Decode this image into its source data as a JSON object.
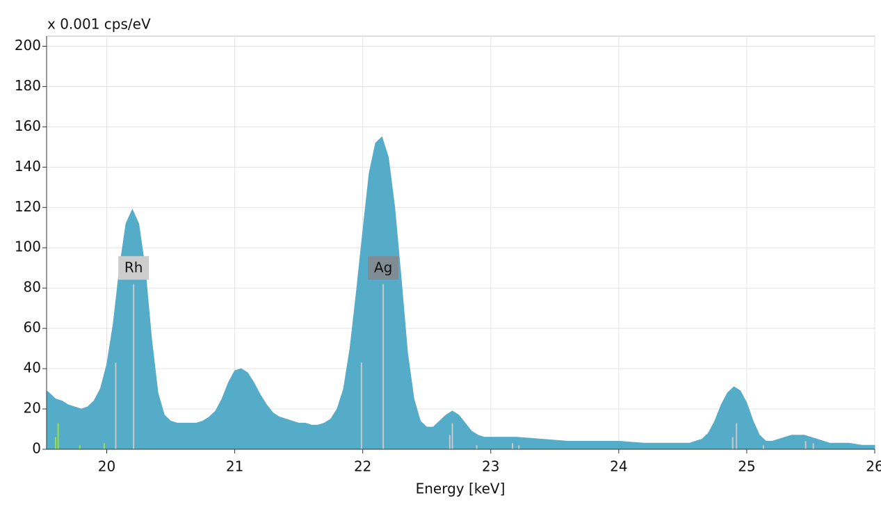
{
  "chart_data": {
    "type": "area",
    "y_unit_label": "x 0.001 cps/eV",
    "xlabel": "Energy [keV]",
    "color": "#55acc9",
    "xlim": [
      19.53,
      26.0
    ],
    "ylim": [
      0,
      205
    ],
    "xticks": [
      20,
      21,
      22,
      23,
      24,
      25,
      26
    ],
    "yticks": [
      0,
      20,
      40,
      60,
      80,
      100,
      120,
      140,
      160,
      180,
      200
    ],
    "grid": true,
    "x": [
      19.53,
      19.55,
      19.6,
      19.65,
      19.7,
      19.75,
      19.8,
      19.85,
      19.9,
      19.95,
      20.0,
      20.05,
      20.1,
      20.15,
      20.2,
      20.25,
      20.3,
      20.35,
      20.4,
      20.45,
      20.5,
      20.55,
      20.6,
      20.65,
      20.7,
      20.75,
      20.8,
      20.85,
      20.9,
      20.95,
      21.0,
      21.05,
      21.1,
      21.15,
      21.2,
      21.25,
      21.3,
      21.35,
      21.4,
      21.45,
      21.5,
      21.55,
      21.6,
      21.65,
      21.7,
      21.75,
      21.8,
      21.85,
      21.9,
      21.95,
      22.0,
      22.05,
      22.1,
      22.15,
      22.2,
      22.25,
      22.3,
      22.35,
      22.4,
      22.45,
      22.5,
      22.55,
      22.6,
      22.65,
      22.7,
      22.75,
      22.8,
      22.85,
      22.9,
      22.95,
      23.0,
      23.2,
      23.4,
      23.6,
      23.8,
      24.0,
      24.2,
      24.4,
      24.55,
      24.6,
      24.65,
      24.7,
      24.75,
      24.8,
      24.85,
      24.9,
      24.95,
      25.0,
      25.05,
      25.1,
      25.15,
      25.2,
      25.25,
      25.3,
      25.35,
      25.4,
      25.45,
      25.5,
      25.55,
      25.6,
      25.65,
      25.7,
      25.8,
      25.9,
      26.0
    ],
    "values": [
      29,
      28,
      25,
      24,
      22,
      21,
      20,
      21,
      24,
      30,
      42,
      62,
      90,
      112,
      119,
      112,
      90,
      55,
      28,
      17,
      14,
      13,
      13,
      13,
      13,
      14,
      16,
      19,
      25,
      33,
      39,
      40,
      38,
      33,
      27,
      22,
      18,
      16,
      15,
      14,
      13,
      13,
      12,
      12,
      13,
      15,
      20,
      30,
      50,
      78,
      108,
      137,
      152,
      155,
      145,
      120,
      85,
      48,
      25,
      14,
      11,
      11,
      14,
      17,
      19,
      17,
      13,
      9,
      7,
      6,
      6,
      6,
      5,
      4,
      4,
      4,
      3,
      3,
      3,
      4,
      5,
      8,
      14,
      22,
      28,
      31,
      29,
      23,
      14,
      7,
      4,
      4,
      5,
      6,
      7,
      7,
      7,
      6,
      5,
      4,
      3,
      3,
      3,
      2,
      2
    ],
    "element_lines": {
      "x": [
        19.6,
        19.62,
        19.79,
        19.98,
        20.07,
        20.21,
        21.99,
        22.16,
        22.68,
        22.7,
        22.89,
        23.17,
        23.22,
        24.89,
        24.92,
        25.13,
        25.46,
        25.52
      ],
      "values": [
        6,
        13,
        2,
        3,
        43,
        82,
        43,
        82,
        7,
        13,
        2,
        3,
        2,
        6,
        13,
        2,
        4,
        3
      ],
      "colors": [
        "#9be03c",
        "#9be03c",
        "#9be03c",
        "#9be03c",
        "#c8c8c8",
        "#c8c8c8",
        "#c8c8c8",
        "#c8c8c8",
        "#c8c8c8",
        "#c8c8c8",
        "#c8c8c8",
        "#c8c8c8",
        "#c8c8c8",
        "#c8c8c8",
        "#c8c8c8",
        "#c8c8c8",
        "#c8c8c8",
        "#c8c8c8"
      ]
    },
    "annotations": [
      {
        "text": "Rh",
        "x": 20.21,
        "y": 90,
        "color": "#cdcdcd"
      },
      {
        "text": "Ag",
        "x": 22.16,
        "y": 90,
        "color": "#7f8c94"
      }
    ]
  }
}
